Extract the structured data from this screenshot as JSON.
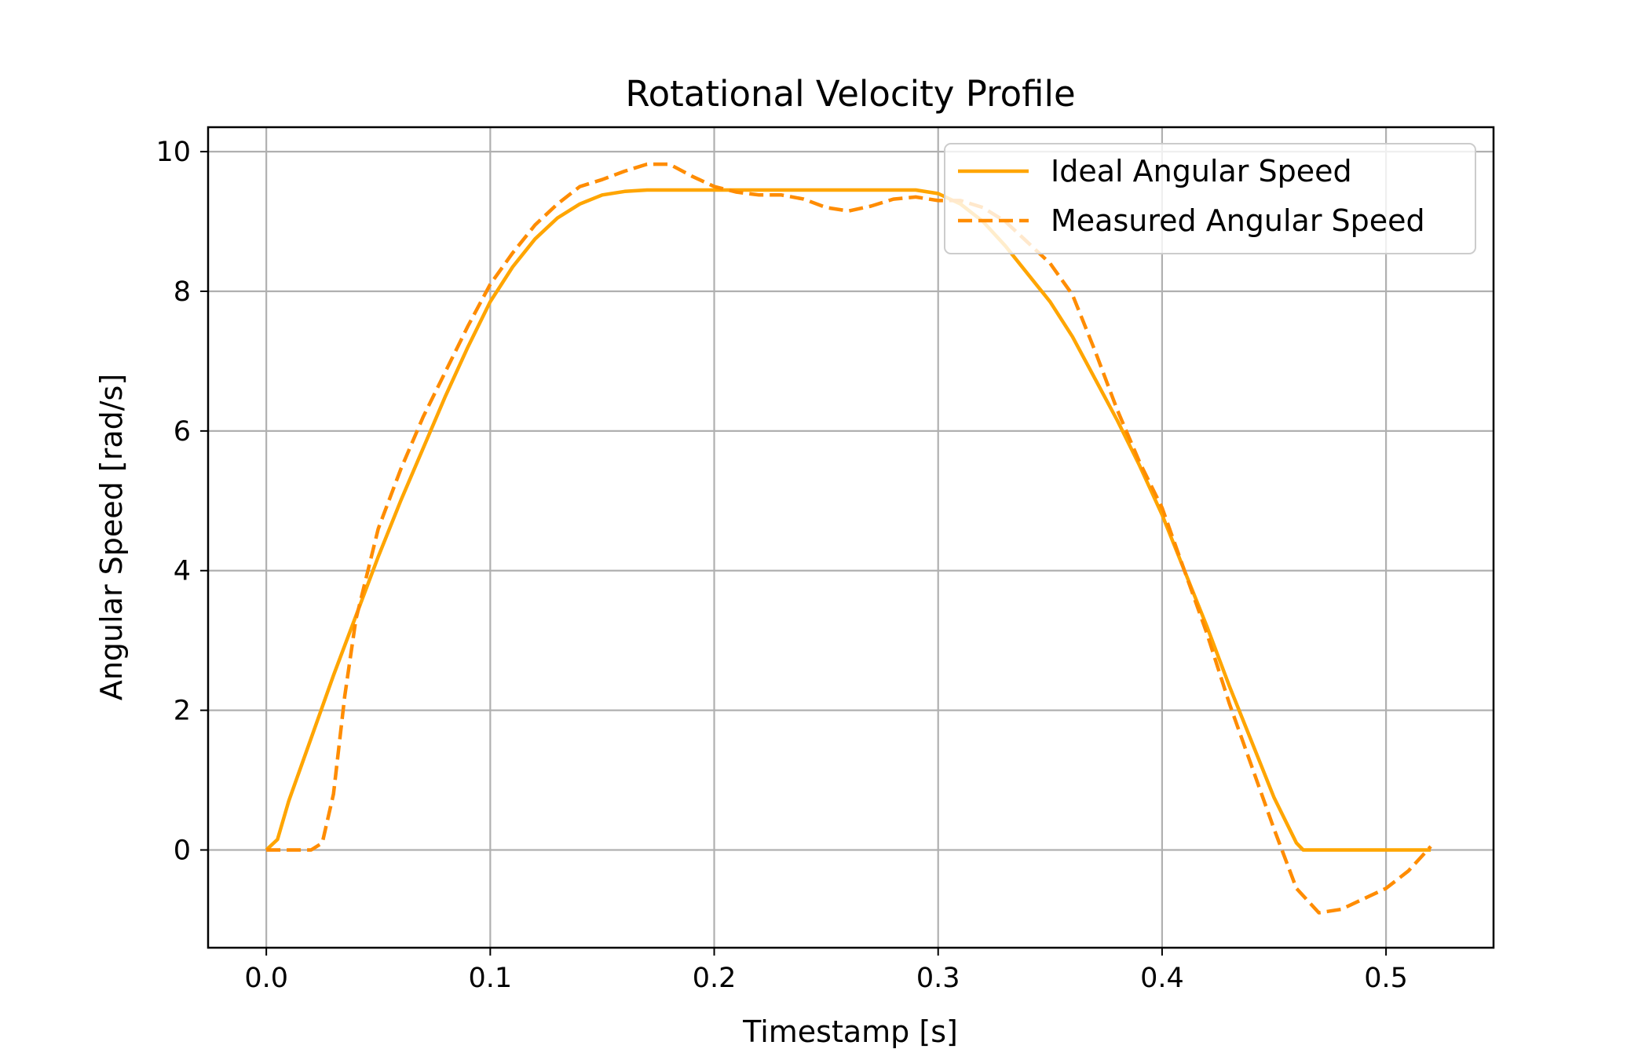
{
  "chart_data": {
    "type": "line",
    "title": "Rotational Velocity Profile",
    "xlabel": "Timestamp [s]",
    "ylabel": "Angular Speed [rad/s]",
    "xlim": [
      -0.026,
      0.548
    ],
    "ylim": [
      -1.4,
      10.35
    ],
    "xticks": [
      0.0,
      0.1,
      0.2,
      0.3,
      0.4,
      0.5
    ],
    "xtick_labels": [
      "0.0",
      "0.1",
      "0.2",
      "0.3",
      "0.4",
      "0.5"
    ],
    "yticks": [
      0,
      2,
      4,
      6,
      8,
      10
    ],
    "ytick_labels": [
      "0",
      "2",
      "4",
      "6",
      "8",
      "10"
    ],
    "grid": true,
    "legend_position": "upper right",
    "series": [
      {
        "name": "Ideal Angular Speed",
        "style": "solid",
        "color": "#ffa500",
        "x": [
          0.0,
          0.005,
          0.01,
          0.02,
          0.03,
          0.04,
          0.05,
          0.06,
          0.07,
          0.08,
          0.09,
          0.1,
          0.11,
          0.12,
          0.13,
          0.14,
          0.15,
          0.16,
          0.17,
          0.18,
          0.2,
          0.22,
          0.24,
          0.26,
          0.28,
          0.29,
          0.3,
          0.31,
          0.32,
          0.33,
          0.34,
          0.35,
          0.36,
          0.37,
          0.38,
          0.39,
          0.4,
          0.41,
          0.42,
          0.43,
          0.44,
          0.45,
          0.46,
          0.463,
          0.48,
          0.5,
          0.52
        ],
        "y": [
          0.0,
          0.15,
          0.7,
          1.6,
          2.5,
          3.35,
          4.2,
          5.0,
          5.75,
          6.5,
          7.2,
          7.85,
          8.35,
          8.75,
          9.05,
          9.25,
          9.38,
          9.43,
          9.45,
          9.45,
          9.45,
          9.45,
          9.45,
          9.45,
          9.45,
          9.45,
          9.4,
          9.25,
          9.0,
          8.65,
          8.25,
          7.85,
          7.35,
          6.75,
          6.15,
          5.5,
          4.8,
          4.0,
          3.2,
          2.35,
          1.55,
          0.75,
          0.1,
          0.0,
          0.0,
          0.0,
          0.0
        ]
      },
      {
        "name": "Measured Angular Speed",
        "style": "dashed",
        "color": "#ff8c00",
        "x": [
          0.0,
          0.01,
          0.015,
          0.02,
          0.025,
          0.03,
          0.035,
          0.04,
          0.05,
          0.06,
          0.07,
          0.08,
          0.09,
          0.1,
          0.11,
          0.12,
          0.13,
          0.14,
          0.15,
          0.16,
          0.17,
          0.18,
          0.19,
          0.2,
          0.21,
          0.22,
          0.23,
          0.24,
          0.25,
          0.26,
          0.27,
          0.28,
          0.29,
          0.3,
          0.31,
          0.32,
          0.33,
          0.34,
          0.35,
          0.36,
          0.37,
          0.38,
          0.39,
          0.4,
          0.41,
          0.42,
          0.43,
          0.44,
          0.45,
          0.46,
          0.47,
          0.48,
          0.49,
          0.5,
          0.51,
          0.52
        ],
        "y": [
          0.0,
          0.0,
          0.0,
          0.0,
          0.1,
          0.8,
          2.2,
          3.3,
          4.6,
          5.45,
          6.2,
          6.85,
          7.5,
          8.1,
          8.55,
          8.95,
          9.25,
          9.5,
          9.6,
          9.72,
          9.82,
          9.82,
          9.65,
          9.5,
          9.42,
          9.38,
          9.38,
          9.32,
          9.2,
          9.15,
          9.22,
          9.32,
          9.35,
          9.3,
          9.3,
          9.2,
          9.0,
          8.7,
          8.4,
          7.95,
          7.15,
          6.3,
          5.55,
          4.9,
          4.0,
          3.1,
          2.1,
          1.2,
          0.3,
          -0.55,
          -0.9,
          -0.85,
          -0.7,
          -0.55,
          -0.3,
          0.05
        ]
      }
    ]
  }
}
